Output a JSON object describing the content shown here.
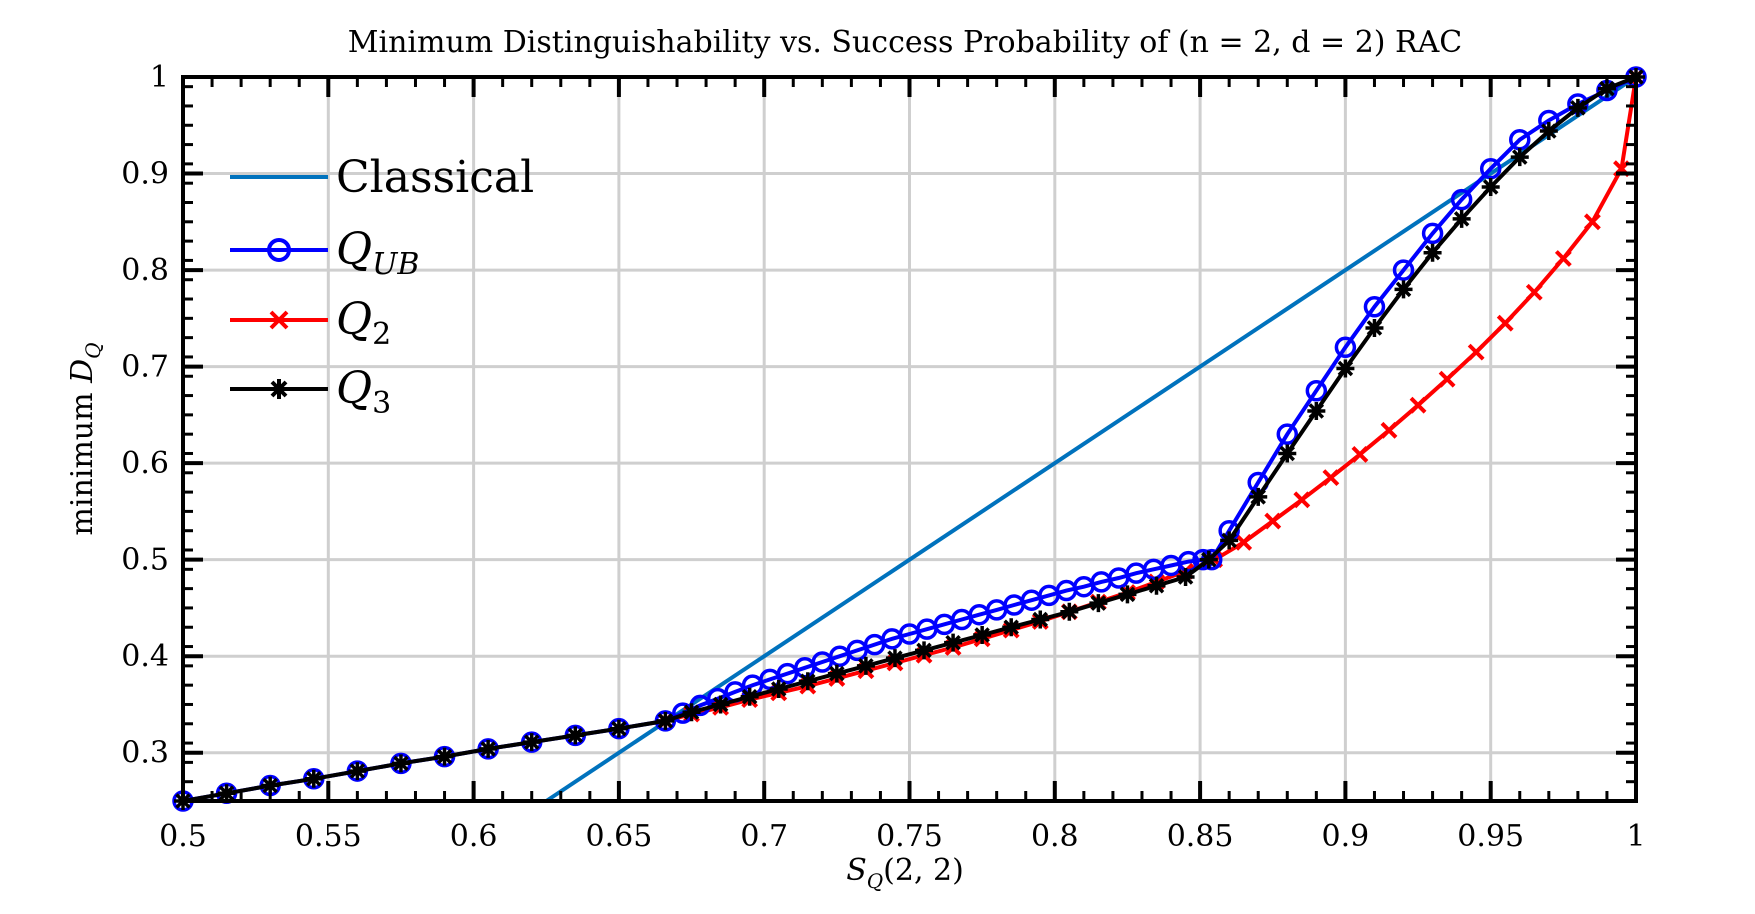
{
  "chart_data": {
    "type": "line",
    "title": "Minimum Distinguishability vs. Success Probability of (n = 2, d = 2) RAC",
    "xlabel": "S_Q(2,2)",
    "ylabel": "minimum D_Q",
    "xlim": [
      0.5,
      1.0
    ],
    "ylim": [
      0.25,
      1.0
    ],
    "xticks": [
      0.5,
      0.55,
      0.6,
      0.65,
      0.7,
      0.75,
      0.8,
      0.85,
      0.9,
      0.95,
      1.0
    ],
    "xtick_labels": [
      "0.5",
      "0.55",
      "0.6",
      "0.65",
      "0.7",
      "0.75",
      "0.8",
      "0.85",
      "0.9",
      "0.95",
      "1"
    ],
    "yticks": [
      0.3,
      0.4,
      0.5,
      0.6,
      0.7,
      0.8,
      0.9,
      1.0
    ],
    "ytick_labels": [
      "0.3",
      "0.4",
      "0.5",
      "0.6",
      "0.7",
      "0.8",
      "0.9",
      "1"
    ],
    "grid": true,
    "legend_position": "top-left",
    "series": [
      {
        "name": "Classical",
        "legend_label": "Classical",
        "color": "#0072BD",
        "marker": "none",
        "x": [
          0.625,
          1.0
        ],
        "y": [
          0.25,
          1.0
        ]
      },
      {
        "name": "Q_UB",
        "legend_label": "Q",
        "legend_sub": "UB",
        "color": "#0000FF",
        "marker": "circle",
        "x": [
          0.5,
          0.515,
          0.53,
          0.545,
          0.56,
          0.575,
          0.59,
          0.605,
          0.62,
          0.635,
          0.65,
          0.666,
          0.672,
          0.678,
          0.684,
          0.69,
          0.696,
          0.702,
          0.708,
          0.714,
          0.72,
          0.726,
          0.732,
          0.738,
          0.744,
          0.75,
          0.756,
          0.762,
          0.768,
          0.774,
          0.78,
          0.786,
          0.792,
          0.798,
          0.804,
          0.81,
          0.816,
          0.822,
          0.828,
          0.834,
          0.84,
          0.846,
          0.851,
          0.854,
          0.86,
          0.87,
          0.88,
          0.89,
          0.9,
          0.91,
          0.92,
          0.93,
          0.94,
          0.95,
          0.96,
          0.97,
          0.98,
          0.99,
          1.0
        ],
        "y": [
          0.25,
          0.258,
          0.266,
          0.273,
          0.281,
          0.289,
          0.296,
          0.304,
          0.311,
          0.318,
          0.325,
          0.333,
          0.341,
          0.349,
          0.356,
          0.363,
          0.37,
          0.376,
          0.382,
          0.388,
          0.394,
          0.4,
          0.406,
          0.412,
          0.418,
          0.423,
          0.428,
          0.433,
          0.438,
          0.443,
          0.448,
          0.453,
          0.458,
          0.463,
          0.468,
          0.472,
          0.477,
          0.481,
          0.486,
          0.49,
          0.494,
          0.498,
          0.5,
          0.5,
          0.53,
          0.58,
          0.63,
          0.675,
          0.72,
          0.762,
          0.8,
          0.838,
          0.873,
          0.905,
          0.935,
          0.955,
          0.972,
          0.986,
          1.0
        ]
      },
      {
        "name": "Q_2",
        "legend_label": "Q",
        "legend_sub": "2",
        "color": "#FF0000",
        "marker": "x",
        "x": [
          0.666,
          0.675,
          0.685,
          0.695,
          0.705,
          0.715,
          0.725,
          0.735,
          0.745,
          0.755,
          0.765,
          0.775,
          0.785,
          0.795,
          0.805,
          0.815,
          0.825,
          0.835,
          0.845,
          0.855,
          0.865,
          0.875,
          0.885,
          0.895,
          0.905,
          0.915,
          0.925,
          0.935,
          0.945,
          0.955,
          0.965,
          0.975,
          0.985,
          0.995,
          1.0
        ],
        "y": [
          0.333,
          0.34,
          0.347,
          0.355,
          0.362,
          0.369,
          0.377,
          0.385,
          0.393,
          0.401,
          0.409,
          0.418,
          0.427,
          0.436,
          0.446,
          0.456,
          0.466,
          0.477,
          0.488,
          0.5,
          0.518,
          0.54,
          0.562,
          0.585,
          0.609,
          0.634,
          0.66,
          0.687,
          0.715,
          0.745,
          0.777,
          0.812,
          0.85,
          0.905,
          1.0
        ]
      },
      {
        "name": "Q_3",
        "legend_label": "Q",
        "legend_sub": "3",
        "color": "#000000",
        "marker": "asterisk",
        "x": [
          0.5,
          0.515,
          0.53,
          0.545,
          0.56,
          0.575,
          0.59,
          0.605,
          0.62,
          0.635,
          0.65,
          0.666,
          0.675,
          0.685,
          0.695,
          0.705,
          0.715,
          0.725,
          0.735,
          0.745,
          0.755,
          0.765,
          0.775,
          0.785,
          0.795,
          0.805,
          0.815,
          0.825,
          0.835,
          0.845,
          0.853,
          0.86,
          0.87,
          0.88,
          0.89,
          0.9,
          0.91,
          0.92,
          0.93,
          0.94,
          0.95,
          0.96,
          0.97,
          0.98,
          0.99,
          1.0
        ],
        "y": [
          0.25,
          0.258,
          0.266,
          0.273,
          0.281,
          0.289,
          0.296,
          0.304,
          0.311,
          0.318,
          0.325,
          0.333,
          0.342,
          0.35,
          0.358,
          0.366,
          0.374,
          0.382,
          0.39,
          0.398,
          0.406,
          0.414,
          0.422,
          0.43,
          0.438,
          0.446,
          0.455,
          0.464,
          0.473,
          0.482,
          0.5,
          0.52,
          0.565,
          0.61,
          0.654,
          0.698,
          0.74,
          0.78,
          0.818,
          0.853,
          0.886,
          0.917,
          0.944,
          0.968,
          0.988,
          1.0
        ]
      }
    ]
  }
}
